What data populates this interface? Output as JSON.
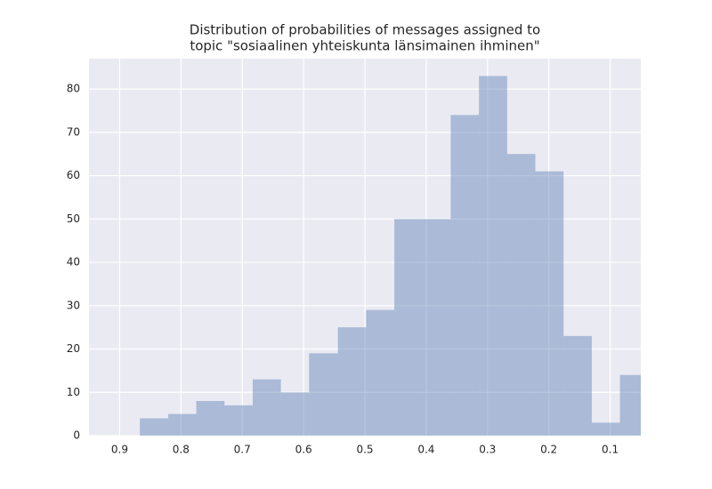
{
  "chart_data": {
    "type": "histogram",
    "title": [
      "Distribution of probabilities of messages assigned to",
      "topic \"sosiaalinen yhteiskunta länsimainen ihminen\""
    ],
    "bins": [
      0.867,
      0.821,
      0.775,
      0.729,
      0.683,
      0.637,
      0.591,
      0.544,
      0.498,
      0.452,
      0.406,
      0.36,
      0.314,
      0.268,
      0.222,
      0.176,
      0.13,
      0.084,
      0.038
    ],
    "values": [
      4,
      5,
      8,
      7,
      13,
      10,
      19,
      25,
      29,
      50,
      50,
      74,
      83,
      65,
      61,
      23,
      3,
      14
    ],
    "color": "#4c72b0",
    "xlim": [
      0.95,
      0.05
    ],
    "xticks": [
      0.9,
      0.8,
      0.7,
      0.6,
      0.5,
      0.4,
      0.3,
      0.2,
      0.1
    ],
    "ylim": [
      0,
      87
    ],
    "yticks": [
      0,
      10,
      20,
      30,
      40,
      50,
      60,
      70,
      80
    ],
    "grid": true
  }
}
